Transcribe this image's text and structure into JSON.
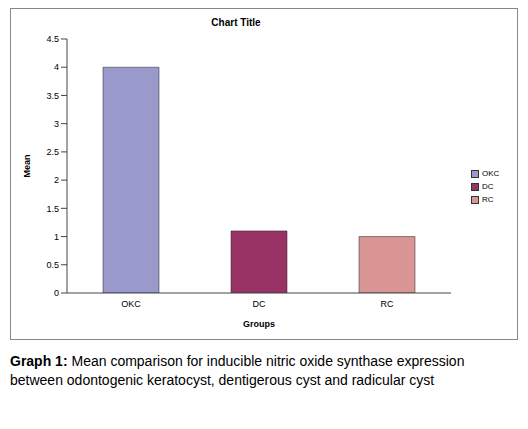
{
  "chart_data": {
    "type": "bar",
    "title": "Chart Title",
    "x_label": "Groups",
    "y_label": "Mean",
    "categories": [
      "OKC",
      "DC",
      "RC"
    ],
    "values": [
      4,
      1.1,
      1
    ],
    "colors": [
      "#9999cc",
      "#993366",
      "#d99594"
    ],
    "ylim": [
      0,
      4.5
    ],
    "yticks": [
      0,
      0.5,
      1,
      1.5,
      2,
      2.5,
      3,
      3.5,
      4,
      4.5
    ],
    "grid": false,
    "legend": "right",
    "caption": "Graph 1: Mean comparison for inducible nitric oxide synthase expression between odontogenic keratocyst, dentigerous cyst and radicular cyst"
  }
}
